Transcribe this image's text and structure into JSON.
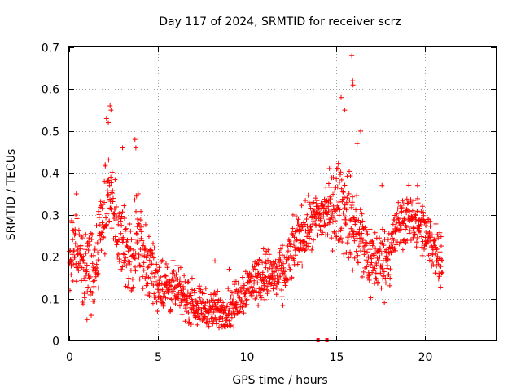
{
  "chart_data": {
    "type": "scatter",
    "title": "Day 117 of 2024, SRMTID for receiver scrz",
    "xlabel": "GPS time / hours",
    "ylabel": "SRMTID / TECUs",
    "xlim": [
      0,
      24
    ],
    "ylim": [
      0,
      0.7
    ],
    "x_ticks": [
      "0",
      "5",
      "10",
      "15",
      "20"
    ],
    "x_tick_values": [
      0,
      5,
      10,
      15,
      20
    ],
    "y_ticks": [
      "0",
      "0.1",
      "0.2",
      "0.3",
      "0.4",
      "0.5",
      "0.6",
      "0.7"
    ],
    "y_tick_values": [
      0,
      0.1,
      0.2,
      0.3,
      0.4,
      0.5,
      0.6,
      0.7
    ],
    "grid": true,
    "marker": "+",
    "color": "#ff0000",
    "series": [
      {
        "name": "SRMTID",
        "profile": [
          [
            0.0,
            0.2
          ],
          [
            0.5,
            0.21
          ],
          [
            1.0,
            0.16
          ],
          [
            1.5,
            0.2
          ],
          [
            2.0,
            0.3
          ],
          [
            2.3,
            0.36
          ],
          [
            2.7,
            0.25
          ],
          [
            3.0,
            0.22
          ],
          [
            3.5,
            0.2
          ],
          [
            3.8,
            0.27
          ],
          [
            4.2,
            0.2
          ],
          [
            5.0,
            0.14
          ],
          [
            6.0,
            0.12
          ],
          [
            7.0,
            0.09
          ],
          [
            8.0,
            0.07
          ],
          [
            9.0,
            0.07
          ],
          [
            10.0,
            0.13
          ],
          [
            11.0,
            0.16
          ],
          [
            12.0,
            0.15
          ],
          [
            12.8,
            0.24
          ],
          [
            13.5,
            0.27
          ],
          [
            14.5,
            0.31
          ],
          [
            15.3,
            0.33
          ],
          [
            16.0,
            0.27
          ],
          [
            17.0,
            0.19
          ],
          [
            17.8,
            0.19
          ],
          [
            18.5,
            0.27
          ],
          [
            19.3,
            0.3
          ],
          [
            20.0,
            0.25
          ],
          [
            20.6,
            0.22
          ],
          [
            21.0,
            0.2
          ]
        ],
        "spread": [
          [
            0.0,
            0.07
          ],
          [
            2.0,
            0.1
          ],
          [
            4.0,
            0.08
          ],
          [
            6.0,
            0.05
          ],
          [
            8.0,
            0.04
          ],
          [
            10.0,
            0.05
          ],
          [
            12.0,
            0.06
          ],
          [
            14.0,
            0.06
          ],
          [
            15.5,
            0.1
          ],
          [
            17.0,
            0.08
          ],
          [
            19.0,
            0.06
          ],
          [
            21.0,
            0.06
          ]
        ],
        "peaks": [
          [
            2.1,
            0.53
          ],
          [
            2.3,
            0.56
          ],
          [
            2.35,
            0.55
          ],
          [
            2.2,
            0.52
          ],
          [
            3.0,
            0.46
          ],
          [
            3.7,
            0.48
          ],
          [
            3.75,
            0.46
          ],
          [
            15.3,
            0.58
          ],
          [
            15.5,
            0.55
          ],
          [
            15.9,
            0.68
          ],
          [
            15.95,
            0.62
          ],
          [
            15.97,
            0.61
          ],
          [
            16.4,
            0.5
          ],
          [
            16.2,
            0.47
          ],
          [
            8.2,
            0.19
          ],
          [
            9.0,
            0.17
          ],
          [
            1.0,
            0.05
          ],
          [
            13.9,
            0.32
          ],
          [
            0.4,
            0.35
          ],
          [
            17.6,
            0.37
          ],
          [
            19.6,
            0.37
          ]
        ],
        "x_range": [
          0,
          21
        ],
        "n_points": 1500
      }
    ],
    "rug_markers": [
      {
        "x": 14.0,
        "y": 0
      },
      {
        "x": 14.5,
        "y": 0
      }
    ]
  }
}
